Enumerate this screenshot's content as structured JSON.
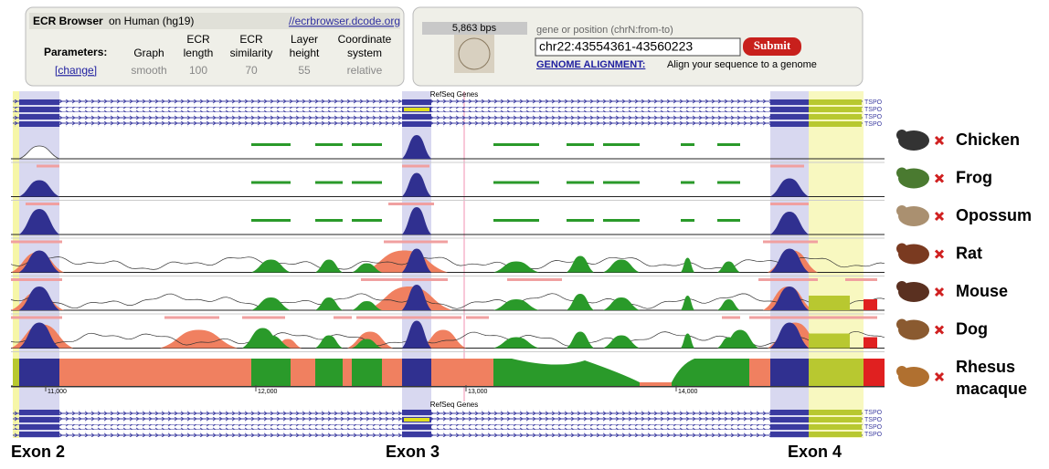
{
  "header": {
    "title_bold": "ECR Browser",
    "title_rest": "on Human (hg19)",
    "link": "//ecrbrowser.dcode.org"
  },
  "parameters": {
    "label": "Parameters:",
    "change": "[change]",
    "columns": [
      {
        "name": "Graph",
        "value": "smooth"
      },
      {
        "name": "ECR length",
        "value": 100
      },
      {
        "name": "ECR similarity",
        "value": 70
      },
      {
        "name": "Layer height",
        "value": 55
      },
      {
        "name": "Coordinate system",
        "value": "relative"
      }
    ]
  },
  "search": {
    "bps": "5,863 bps",
    "hint": "gene or position (chrN:from-to)",
    "input": "chr22:43554361-43560223",
    "button": "Submit",
    "alignment_link": "GENOME ALIGNMENT:",
    "alignment_text": "Align your sequence to a genome"
  },
  "tracks": {
    "genes_label": "RefSeq Genes",
    "gene_name": "TSPO",
    "ruler": [
      "11,000",
      "12,000",
      "13,000",
      "14,000"
    ]
  },
  "species": [
    "Chicken",
    "Frog",
    "Opossum",
    "Rat",
    "Mouse",
    "Dog",
    "Rhesus macaque"
  ],
  "exons": [
    "Exon 2",
    "Exon 3",
    "Exon 4"
  ]
}
